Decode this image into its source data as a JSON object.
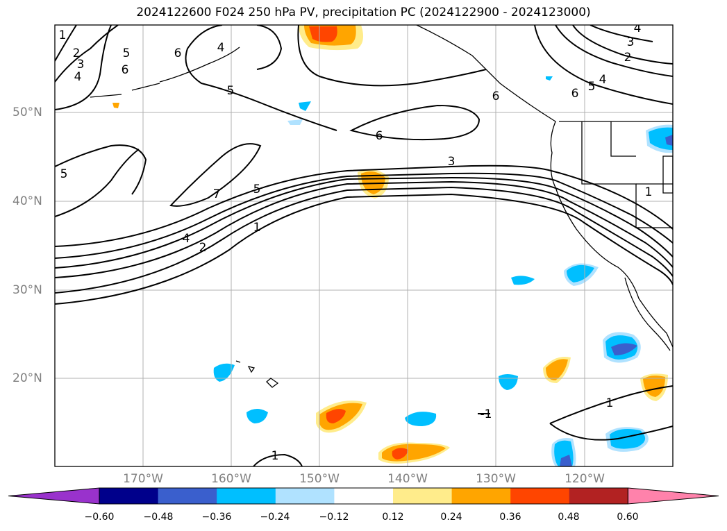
{
  "title": "2024122600 F024 250 hPa PV, precipitation PC (2024122900 - 2024123000)",
  "map": {
    "lat_labels": [
      "50°N",
      "40°N",
      "30°N",
      "20°N"
    ],
    "lon_labels": [
      "170°W",
      "160°W",
      "150°W",
      "140°W",
      "130°W",
      "120°W"
    ],
    "contour_labels": [
      "1",
      "2",
      "3",
      "4",
      "5",
      "6",
      "7",
      "-1"
    ]
  },
  "colorbar": {
    "ticks": [
      "−0.60",
      "−0.48",
      "−0.36",
      "−0.24",
      "−0.12",
      "0.12",
      "0.24",
      "0.36",
      "0.48",
      "0.60"
    ],
    "colors": [
      "#9932cc",
      "#00008b",
      "#3a5fcd",
      "#00bfff",
      "#b0e2ff",
      "#ffffff",
      "#ffec8b",
      "#ffa500",
      "#ff4500",
      "#b22222",
      "#ff82ab"
    ]
  }
}
